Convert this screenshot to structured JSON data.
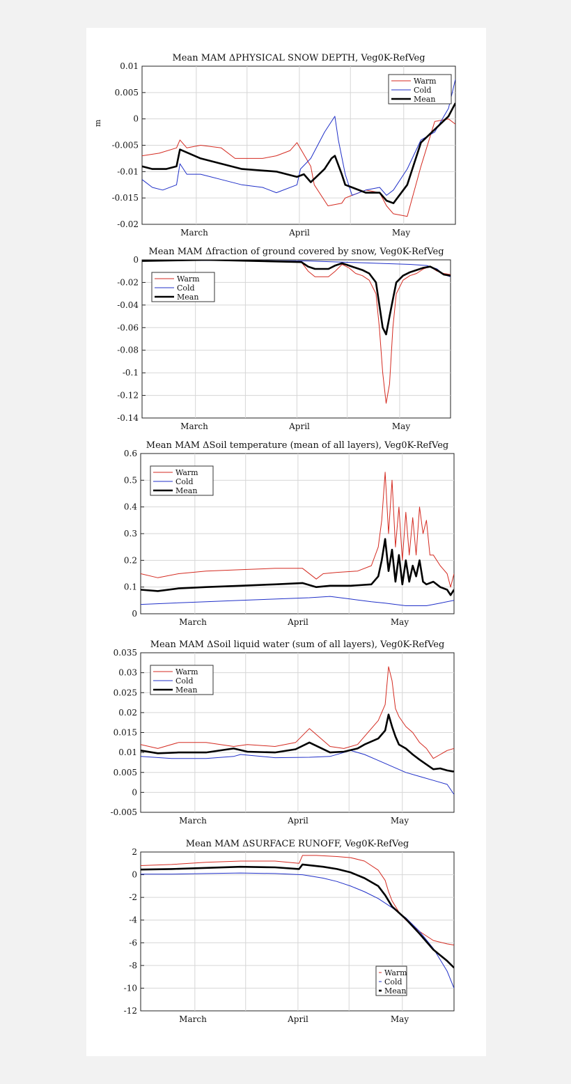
{
  "colors": {
    "warm": "#d42a20",
    "cold": "#1f2fc8",
    "mean": "#000000"
  },
  "chart_data": [
    {
      "type": "line",
      "title": "Mean MAM ΔPHYSICAL SNOW DEPTH, Veg0K-RefVeg",
      "ylabel": "m",
      "xlabel": "",
      "x_tick_labels": [
        "March",
        "April",
        "May"
      ],
      "y_ticks": [
        "0.01",
        "0.005",
        "0",
        "-0.005",
        "-0.01",
        "-0.015",
        "-0.02"
      ],
      "ylim": [
        -0.02,
        0.01
      ],
      "x_day_range": [
        1,
        92
      ],
      "legend": {
        "position": "top-right",
        "entries": [
          "Warm",
          "Cold",
          "Mean"
        ]
      },
      "grid": true,
      "series": [
        {
          "name": "Warm",
          "x": [
            1,
            6,
            11,
            12,
            14,
            18,
            24,
            28,
            36,
            40,
            44,
            46,
            50,
            51,
            55,
            59,
            60,
            62,
            66,
            70,
            72,
            74,
            78,
            82,
            86,
            90,
            92
          ],
          "y": [
            -0.007,
            -0.0065,
            -0.0055,
            -0.004,
            -0.0055,
            -0.005,
            -0.0055,
            -0.0075,
            -0.0075,
            -0.007,
            -0.006,
            -0.0045,
            -0.009,
            -0.0125,
            -0.0165,
            -0.016,
            -0.015,
            -0.0145,
            -0.0135,
            -0.014,
            -0.0165,
            -0.018,
            -0.0185,
            -0.009,
            -0.0005,
            0.0,
            -0.001
          ]
        },
        {
          "name": "Cold",
          "x": [
            1,
            4,
            7,
            11,
            12,
            14,
            18,
            24,
            30,
            36,
            40,
            46,
            47,
            50,
            54,
            57,
            58,
            60,
            62,
            66,
            70,
            72,
            74,
            78,
            82,
            86,
            90,
            92
          ],
          "y": [
            -0.0115,
            -0.013,
            -0.0135,
            -0.0125,
            -0.0085,
            -0.0105,
            -0.0105,
            -0.0115,
            -0.0125,
            -0.013,
            -0.014,
            -0.0125,
            -0.0095,
            -0.0075,
            -0.0025,
            0.0005,
            -0.004,
            -0.0105,
            -0.0145,
            -0.0135,
            -0.013,
            -0.0145,
            -0.0135,
            -0.0095,
            -0.004,
            -0.0025,
            0.002,
            0.0075
          ]
        },
        {
          "name": "Mean",
          "x": [
            1,
            4,
            8,
            11,
            12,
            18,
            24,
            30,
            36,
            40,
            46,
            48,
            50,
            54,
            56,
            57,
            59,
            60,
            62,
            66,
            70,
            72,
            74,
            78,
            82,
            86,
            90,
            92
          ],
          "y": [
            -0.009,
            -0.0095,
            -0.0095,
            -0.009,
            -0.0058,
            -0.0075,
            -0.0085,
            -0.0095,
            -0.0098,
            -0.01,
            -0.011,
            -0.0105,
            -0.012,
            -0.0095,
            -0.0075,
            -0.007,
            -0.0105,
            -0.0125,
            -0.013,
            -0.014,
            -0.014,
            -0.0155,
            -0.016,
            -0.0125,
            -0.0045,
            -0.002,
            0.0005,
            0.003
          ]
        }
      ]
    },
    {
      "type": "line",
      "title": "Mean MAM Δfraction of ground covered by snow, Veg0K-RefVeg",
      "ylabel": "",
      "xlabel": "",
      "x_tick_labels": [
        "March",
        "April",
        "May"
      ],
      "y_ticks": [
        "0",
        "-0.02",
        "-0.04",
        "-0.06",
        "-0.08",
        "-0.1",
        "-0.12",
        "-0.14"
      ],
      "ylim": [
        -0.14,
        0
      ],
      "x_day_range": [
        1,
        92
      ],
      "legend": {
        "position": "top-left",
        "entries": [
          "Warm",
          "Cold",
          "Mean"
        ]
      },
      "grid": true,
      "series": [
        {
          "name": "Warm",
          "x": [
            1,
            20,
            48,
            50,
            52,
            56,
            58,
            60,
            62,
            64,
            66,
            68,
            70,
            71,
            72,
            73,
            74,
            75,
            76,
            78,
            80,
            82,
            84,
            86,
            88,
            90,
            92
          ],
          "y": [
            -0.001,
            0,
            -0.002,
            -0.01,
            -0.015,
            -0.015,
            -0.01,
            -0.004,
            -0.007,
            -0.012,
            -0.014,
            -0.018,
            -0.03,
            -0.06,
            -0.1,
            -0.127,
            -0.11,
            -0.06,
            -0.03,
            -0.018,
            -0.014,
            -0.012,
            -0.008,
            -0.006,
            -0.01,
            -0.012,
            -0.013
          ]
        },
        {
          "name": "Cold",
          "x": [
            1,
            20,
            50,
            60,
            70,
            80,
            85,
            88,
            90,
            92
          ],
          "y": [
            -0.001,
            -0.0005,
            -0.001,
            -0.002,
            -0.003,
            -0.004,
            -0.005,
            -0.008,
            -0.013,
            -0.015
          ]
        },
        {
          "name": "Mean",
          "x": [
            1,
            20,
            48,
            50,
            52,
            56,
            58,
            60,
            62,
            64,
            66,
            68,
            70,
            71,
            72,
            73,
            74,
            75,
            76,
            78,
            80,
            82,
            84,
            86,
            88,
            90,
            92
          ],
          "y": [
            -0.001,
            0,
            -0.002,
            -0.006,
            -0.008,
            -0.008,
            -0.005,
            -0.003,
            -0.005,
            -0.007,
            -0.009,
            -0.012,
            -0.02,
            -0.04,
            -0.06,
            -0.066,
            -0.05,
            -0.035,
            -0.02,
            -0.014,
            -0.011,
            -0.009,
            -0.007,
            -0.006,
            -0.009,
            -0.013,
            -0.014
          ]
        }
      ]
    },
    {
      "type": "line",
      "title": "Mean MAM ΔSoil temperature (mean of all layers), Veg0K-RefVeg",
      "ylabel": "",
      "xlabel": "",
      "x_tick_labels": [
        "March",
        "April",
        "May"
      ],
      "y_ticks": [
        "0.6",
        "0.5",
        "0.4",
        "0.3",
        "0.2",
        "0.1",
        "0"
      ],
      "ylim": [
        0,
        0.6
      ],
      "x_day_range": [
        1,
        92
      ],
      "legend": {
        "position": "top-left",
        "entries": [
          "Warm",
          "Cold",
          "Mean"
        ]
      },
      "grid": true,
      "series": [
        {
          "name": "Warm",
          "x": [
            1,
            6,
            12,
            20,
            30,
            40,
            48,
            52,
            54,
            58,
            64,
            68,
            70,
            71,
            72,
            73,
            74,
            75,
            76,
            77,
            78,
            79,
            80,
            81,
            82,
            83,
            84,
            85,
            86,
            88,
            90,
            91,
            92
          ],
          "y": [
            0.15,
            0.135,
            0.15,
            0.16,
            0.165,
            0.17,
            0.17,
            0.13,
            0.15,
            0.155,
            0.16,
            0.18,
            0.25,
            0.35,
            0.53,
            0.3,
            0.5,
            0.25,
            0.4,
            0.2,
            0.38,
            0.22,
            0.36,
            0.22,
            0.4,
            0.3,
            0.35,
            0.22,
            0.22,
            0.18,
            0.15,
            0.1,
            0.15
          ]
        },
        {
          "name": "Cold",
          "x": [
            1,
            10,
            20,
            30,
            40,
            50,
            56,
            62,
            68,
            72,
            78,
            84,
            88,
            92
          ],
          "y": [
            0.035,
            0.04,
            0.045,
            0.05,
            0.055,
            0.06,
            0.065,
            0.055,
            0.045,
            0.04,
            0.03,
            0.03,
            0.04,
            0.05
          ]
        },
        {
          "name": "Mean",
          "x": [
            1,
            6,
            12,
            20,
            30,
            40,
            48,
            52,
            56,
            62,
            68,
            70,
            71,
            72,
            73,
            74,
            75,
            76,
            77,
            78,
            79,
            80,
            81,
            82,
            83,
            84,
            86,
            88,
            90,
            91,
            92
          ],
          "y": [
            0.09,
            0.085,
            0.095,
            0.1,
            0.105,
            0.11,
            0.115,
            0.1,
            0.105,
            0.105,
            0.11,
            0.14,
            0.2,
            0.28,
            0.16,
            0.24,
            0.12,
            0.22,
            0.11,
            0.2,
            0.12,
            0.18,
            0.14,
            0.2,
            0.12,
            0.11,
            0.12,
            0.1,
            0.09,
            0.07,
            0.09
          ]
        }
      ]
    },
    {
      "type": "line",
      "title": "Mean MAM ΔSoil liquid water (sum of all layers), Veg0K-RefVeg",
      "ylabel": "",
      "xlabel": "",
      "x_tick_labels": [
        "March",
        "April",
        "May"
      ],
      "y_ticks": [
        "0.035",
        "0.03",
        "0.025",
        "0.02",
        "0.015",
        "0.01",
        "0.005",
        "0",
        "-0.005"
      ],
      "ylim": [
        -0.005,
        0.035
      ],
      "x_day_range": [
        1,
        92
      ],
      "legend": {
        "position": "top-left",
        "entries": [
          "Warm",
          "Cold",
          "Mean"
        ]
      },
      "grid": true,
      "series": [
        {
          "name": "Warm",
          "x": [
            1,
            6,
            12,
            20,
            28,
            32,
            40,
            46,
            50,
            56,
            60,
            64,
            66,
            70,
            72,
            73,
            74,
            75,
            76,
            78,
            80,
            82,
            84,
            86,
            88,
            90,
            92
          ],
          "y": [
            0.012,
            0.011,
            0.0125,
            0.0125,
            0.0115,
            0.012,
            0.0115,
            0.0125,
            0.016,
            0.0115,
            0.011,
            0.012,
            0.014,
            0.018,
            0.022,
            0.0315,
            0.028,
            0.021,
            0.019,
            0.0165,
            0.015,
            0.0125,
            0.011,
            0.0085,
            0.0095,
            0.0105,
            0.011
          ]
        },
        {
          "name": "Cold",
          "x": [
            1,
            10,
            20,
            28,
            30,
            40,
            50,
            56,
            62,
            66,
            70,
            74,
            78,
            82,
            86,
            90,
            92
          ],
          "y": [
            0.009,
            0.0085,
            0.0085,
            0.009,
            0.0095,
            0.0087,
            0.0088,
            0.009,
            0.0105,
            0.0095,
            0.008,
            0.0065,
            0.005,
            0.004,
            0.003,
            0.002,
            -0.0005
          ]
        },
        {
          "name": "Mean",
          "x": [
            1,
            6,
            12,
            20,
            28,
            32,
            40,
            46,
            50,
            56,
            60,
            64,
            66,
            70,
            72,
            73,
            74,
            75,
            76,
            78,
            80,
            82,
            84,
            86,
            88,
            90,
            92
          ],
          "y": [
            0.0105,
            0.0098,
            0.01,
            0.01,
            0.011,
            0.0102,
            0.01,
            0.0108,
            0.0125,
            0.01,
            0.0102,
            0.011,
            0.012,
            0.0135,
            0.0155,
            0.0195,
            0.0165,
            0.014,
            0.012,
            0.011,
            0.0095,
            0.0082,
            0.007,
            0.0058,
            0.006,
            0.0055,
            0.0052
          ]
        }
      ]
    },
    {
      "type": "line",
      "title": "Mean MAM ΔSURFACE RUNOFF, Veg0K-RefVeg",
      "ylabel": "",
      "xlabel": "",
      "x_tick_labels": [
        "March",
        "April",
        "May"
      ],
      "y_ticks": [
        "2",
        "0",
        "-2",
        "-4",
        "-6",
        "-8",
        "-10",
        "-12"
      ],
      "ylim": [
        -12,
        2
      ],
      "x_day_range": [
        1,
        92
      ],
      "legend": {
        "position": "bottom-right",
        "entries": [
          "Warm",
          "Cold",
          "Mean"
        ]
      },
      "grid": true,
      "series": [
        {
          "name": "Warm",
          "x": [
            1,
            10,
            20,
            30,
            40,
            47,
            48,
            52,
            58,
            62,
            66,
            70,
            72,
            73,
            74,
            76,
            78,
            82,
            86,
            90,
            92
          ],
          "y": [
            0.8,
            0.9,
            1.1,
            1.2,
            1.2,
            1.0,
            1.7,
            1.7,
            1.6,
            1.5,
            1.2,
            0.4,
            -0.5,
            -1.5,
            -2.3,
            -3.3,
            -4.0,
            -5.0,
            -5.8,
            -6.1,
            -6.2
          ]
        },
        {
          "name": "Cold",
          "x": [
            1,
            10,
            20,
            30,
            40,
            48,
            54,
            58,
            62,
            66,
            70,
            74,
            78,
            82,
            86,
            90,
            92
          ],
          "y": [
            0.05,
            0.05,
            0.1,
            0.15,
            0.1,
            0.0,
            -0.3,
            -0.6,
            -1.0,
            -1.5,
            -2.1,
            -2.9,
            -3.8,
            -5.0,
            -6.5,
            -8.5,
            -10.0
          ]
        },
        {
          "name": "Mean",
          "x": [
            1,
            10,
            20,
            30,
            40,
            47,
            48,
            54,
            58,
            62,
            66,
            70,
            72,
            74,
            78,
            82,
            86,
            90,
            92
          ],
          "y": [
            0.45,
            0.5,
            0.6,
            0.7,
            0.65,
            0.5,
            0.9,
            0.7,
            0.5,
            0.2,
            -0.3,
            -1.0,
            -1.8,
            -2.8,
            -3.9,
            -5.2,
            -6.6,
            -7.6,
            -8.2
          ]
        }
      ]
    }
  ]
}
